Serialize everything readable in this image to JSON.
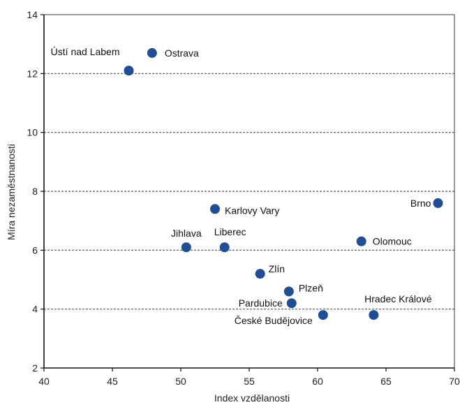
{
  "chart_data": {
    "type": "scatter",
    "title": "",
    "xlabel": "Index vzdělanosti",
    "ylabel": "Míra nezaměstnanosti",
    "xlim": [
      40,
      70
    ],
    "ylim": [
      2,
      14
    ],
    "xticks": [
      40,
      45,
      50,
      55,
      60,
      65,
      70
    ],
    "yticks": [
      2,
      4,
      6,
      8,
      10,
      12,
      14
    ],
    "grid": "horizontal dashed",
    "legend": "none",
    "point_color": "#1f4e96",
    "points": [
      {
        "label": "Ústí nad Labem",
        "x": 46.2,
        "y": 12.1
      },
      {
        "label": "Ostrava",
        "x": 47.9,
        "y": 12.7
      },
      {
        "label": "Brno",
        "x": 68.8,
        "y": 7.6
      },
      {
        "label": "Karlovy Vary",
        "x": 52.5,
        "y": 7.4
      },
      {
        "label": "Olomouc",
        "x": 63.2,
        "y": 6.3
      },
      {
        "label": "Jihlava",
        "x": 50.4,
        "y": 6.1
      },
      {
        "label": "Liberec",
        "x": 53.2,
        "y": 6.1
      },
      {
        "label": "Zlín",
        "x": 55.8,
        "y": 5.2
      },
      {
        "label": "Plzeň",
        "x": 57.9,
        "y": 4.6
      },
      {
        "label": "Pardubice",
        "x": 58.1,
        "y": 4.2
      },
      {
        "label": "České Budějovice",
        "x": 60.4,
        "y": 3.8
      },
      {
        "label": "Hradec Králové",
        "x": 64.1,
        "y": 3.8
      }
    ]
  }
}
